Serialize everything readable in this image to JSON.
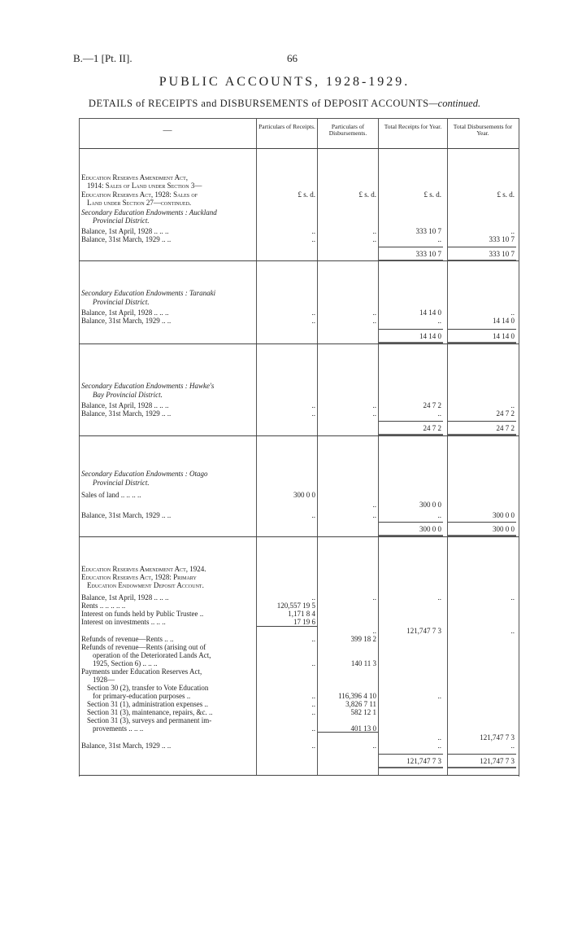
{
  "page": {
    "ref": "B.—1 [Pt. II].",
    "number": "66",
    "title": "PUBLIC ACCOUNTS, 1928-1929.",
    "subtitle": "DETAILS of RECEIPTS and DISBURSEMENTS of DEPOSIT ACCOUNTS",
    "subtitle_suffix": "—continued."
  },
  "table": {
    "columns": [
      "—",
      "Particulars of Receipts.",
      "Particulars of Disbursements.",
      "Total Receipts for Year.",
      "Total Disbursements for Year."
    ],
    "currency_units": "£   s.  d.",
    "sections": [
      {
        "lines": [
          {
            "text": "Education Reserves Amendment Act,",
            "style": "caps"
          },
          {
            "text": "1914: Sales of Land under Section 3—",
            "style": "caps",
            "indent": 1
          },
          {
            "text": "Education Reserves Act, 1928: Sales of",
            "style": "caps"
          },
          {
            "text": "Land under Section 27—continued.",
            "style": "caps",
            "indent": 1
          },
          {
            "text": "Secondary Education Endowments : Auckland",
            "style": "italic"
          },
          {
            "text": "Provincial District.",
            "style": "italic",
            "indent": 2
          },
          {
            "text": "Balance, 1st April, 1928 ..      ..      ..",
            "style": "plain",
            "receipts": "..",
            "disbursements": "..",
            "total_receipts": "333 10 7",
            "total_disbursements": ".."
          },
          {
            "text": "Balance, 31st March, 1929       ..      ..",
            "style": "plain",
            "receipts": "..",
            "disbursements": "..",
            "total_receipts": "..",
            "total_disbursements": "333 10 7"
          }
        ],
        "totals": {
          "total_receipts": "333 10 7",
          "total_disbursements": "333 10 7"
        }
      },
      {
        "lines": [
          {
            "text": "Secondary Education Endowments : Taranaki",
            "style": "italic"
          },
          {
            "text": "Provincial District.",
            "style": "italic",
            "indent": 2
          },
          {
            "text": "Balance, 1st April, 1928 ..      ..      ..",
            "style": "plain",
            "receipts": "..",
            "disbursements": "..",
            "total_receipts": "14 14 0",
            "total_disbursements": ".."
          },
          {
            "text": "Balance, 31st March, 1929       ..      ..",
            "style": "plain",
            "receipts": "..",
            "disbursements": "..",
            "total_receipts": "..",
            "total_disbursements": "14 14 0"
          }
        ],
        "totals": {
          "total_receipts": "14 14 0",
          "total_disbursements": "14 14 0"
        }
      },
      {
        "lines": [
          {
            "text": "Secondary Education Endowments : Hawke's",
            "style": "italic"
          },
          {
            "text": "Bay Provincial District.",
            "style": "italic",
            "indent": 2
          },
          {
            "text": "Balance, 1st April, 1928 ..      ..      ..",
            "style": "plain",
            "receipts": "..",
            "disbursements": "..",
            "total_receipts": "24 7 2",
            "total_disbursements": ".."
          },
          {
            "text": "Balance, 31st March, 1929       ..      ..",
            "style": "plain",
            "receipts": "..",
            "disbursements": "..",
            "total_receipts": "..",
            "total_disbursements": "24 7 2"
          }
        ],
        "totals": {
          "total_receipts": "24 7 2",
          "total_disbursements": "24 7 2"
        }
      },
      {
        "lines": [
          {
            "text": "Secondary Education Endowments : Otago",
            "style": "italic"
          },
          {
            "text": "Provincial District.",
            "style": "italic",
            "indent": 2
          },
          {
            "text": "Sales of land   ..      ..      ..      ..",
            "style": "plain",
            "receipts": "300 0 0"
          },
          {
            "text": "",
            "style": "plain",
            "disbursements": "..",
            "total_receipts": "300 0 0"
          },
          {
            "text": "Balance, 31st March, 1929       ..      ..",
            "style": "plain",
            "receipts": "..",
            "disbursements": "..",
            "total_receipts": "..",
            "total_disbursements": "300 0 0"
          }
        ],
        "totals": {
          "total_receipts": "300 0 0",
          "total_disbursements": "300 0 0"
        }
      },
      {
        "lines": [
          {
            "text": "Education Reserves Amendment Act, 1924.",
            "style": "caps"
          },
          {
            "text": "Education Reserves Act, 1928: Primary",
            "style": "caps"
          },
          {
            "text": "Education Endowment Deposit Account.",
            "style": "caps",
            "indent": 1
          },
          {
            "text": "Balance, 1st April, 1928 ..      ..      ..",
            "style": "plain",
            "receipts": "..",
            "disbursements": "..",
            "total_receipts": "..",
            "total_disbursements": ".."
          },
          {
            "text": "Rents ..      ..      ..      ..      ..",
            "style": "plain",
            "receipts": "120,557 19 5"
          },
          {
            "text": "Interest on funds held by Public Trustee  ..",
            "style": "plain",
            "receipts": "1,171 8 4"
          },
          {
            "text": "Interest on investments ..      ..      ..",
            "style": "plain",
            "receipts": "17 19 6"
          },
          {
            "text": "",
            "style": "plain",
            "disbursements": "..",
            "total_receipts": "121,747 7 3",
            "total_disbursements": ".."
          },
          {
            "text": "Refunds of revenue—Rents       ..      ..",
            "style": "plain",
            "receipts": "..",
            "disbursements": "399 18 2"
          },
          {
            "text": "Refunds of revenue—Rents (arising out of",
            "style": "plain"
          },
          {
            "text": "operation of the Deteriorated Lands Act,",
            "style": "plain",
            "indent": 2
          },
          {
            "text": "1925, Section 6)    ..      ..      ..",
            "style": "plain",
            "indent": 2,
            "receipts": "..",
            "disbursements": "140 11 3"
          },
          {
            "text": "Payments under Education Reserves Act,",
            "style": "plain"
          },
          {
            "text": "1928—",
            "style": "plain",
            "indent": 2
          },
          {
            "text": "Section 30 (2), transfer to Vote Education",
            "style": "plain",
            "indent": 1
          },
          {
            "text": "for primary-education purposes      ..",
            "style": "plain",
            "indent": 2,
            "receipts": "..",
            "disbursements": "116,396 4 10",
            "total_receipts": ".."
          },
          {
            "text": "Section 31 (1), administration expenses ..",
            "style": "plain",
            "indent": 1,
            "receipts": "..",
            "disbursements": "3,826 7 11"
          },
          {
            "text": "Section 31 (3), maintenance, repairs, &c. ..",
            "style": "plain",
            "indent": 1,
            "receipts": "..",
            "disbursements": "582 12 1"
          },
          {
            "text": "Section 31 (3), surveys and permanent im-",
            "style": "plain",
            "indent": 1
          },
          {
            "text": "provements      ..      ..      ..",
            "style": "plain",
            "indent": 2,
            "receipts": "..",
            "disbursements": "401 13 0"
          },
          {
            "text": "",
            "style": "plain",
            "total_receipts": "..",
            "total_disbursements": "121,747 7 3"
          },
          {
            "text": "Balance, 31st March, 1929       ..      ..",
            "style": "plain",
            "receipts": "..",
            "disbursements": "..",
            "total_receipts": "..",
            "total_disbursements": ".."
          }
        ],
        "totals": {
          "total_receipts": "121,747 7 3",
          "total_disbursements": "121,747 7 3"
        }
      }
    ]
  }
}
